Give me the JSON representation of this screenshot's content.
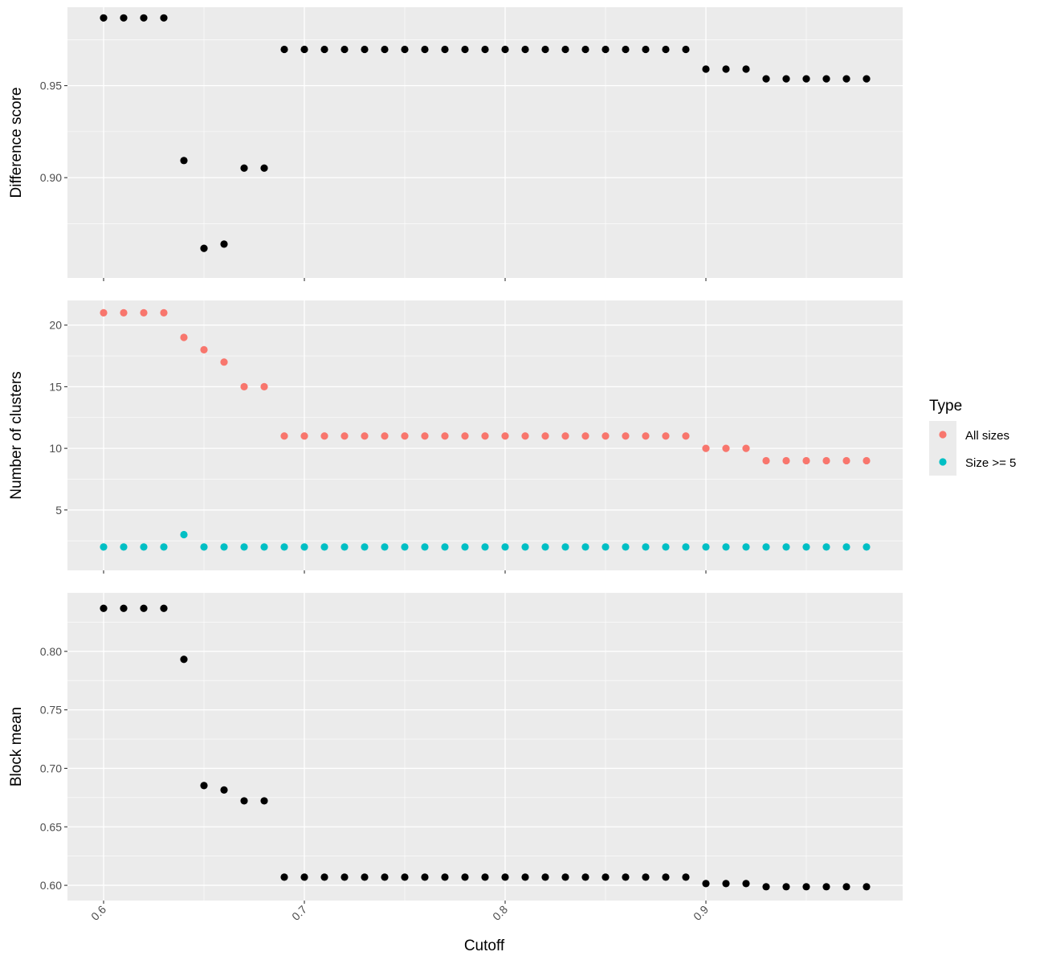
{
  "chart_data": {
    "type": "scatter",
    "xlabel": "Cutoff",
    "x_ticks": [
      0.6,
      0.7,
      0.8,
      0.9
    ],
    "x_tick_labels": [
      "0.6",
      "0.7",
      "0.8",
      "0.9"
    ],
    "xlim": [
      0.582,
      0.998
    ],
    "x": [
      0.6,
      0.61,
      0.62,
      0.63,
      0.64,
      0.65,
      0.66,
      0.67,
      0.68,
      0.69,
      0.7,
      0.71,
      0.72,
      0.73,
      0.74,
      0.75,
      0.76,
      0.77,
      0.78,
      0.79,
      0.8,
      0.81,
      0.82,
      0.83,
      0.84,
      0.85,
      0.86,
      0.87,
      0.88,
      0.89,
      0.9,
      0.91,
      0.92,
      0.93,
      0.94,
      0.95,
      0.96,
      0.97,
      0.98
    ],
    "panels": [
      {
        "ylabel": "Difference score",
        "ylim": [
          0.8455,
          0.9926
        ],
        "y_ticks": [
          0.9,
          0.95
        ],
        "y_tick_labels": [
          "0.90",
          "0.95"
        ],
        "series": [
          {
            "color": "#000000",
            "values": [
              0.9868,
              0.9868,
              0.9868,
              0.9868,
              0.9093,
              0.8616,
              0.8639,
              0.9052,
              0.9052,
              0.9697,
              0.9697,
              0.9697,
              0.9697,
              0.9697,
              0.9697,
              0.9697,
              0.9697,
              0.9697,
              0.9697,
              0.9697,
              0.9697,
              0.9697,
              0.9697,
              0.9697,
              0.9697,
              0.9697,
              0.9697,
              0.9697,
              0.9697,
              0.9697,
              0.959,
              0.959,
              0.959,
              0.9537,
              0.9537,
              0.9537,
              0.9537,
              0.9537,
              0.9537
            ]
          }
        ]
      },
      {
        "ylabel": "Number of clusters",
        "ylim": [
          0.1,
          22.0
        ],
        "y_ticks": [
          5,
          10,
          15,
          20
        ],
        "y_tick_labels": [
          "5",
          "10",
          "15",
          "20"
        ],
        "series": [
          {
            "name": "All sizes",
            "color": "#F8766D",
            "values": [
              21,
              21,
              21,
              21,
              19,
              18,
              17,
              15,
              15,
              11,
              11,
              11,
              11,
              11,
              11,
              11,
              11,
              11,
              11,
              11,
              11,
              11,
              11,
              11,
              11,
              11,
              11,
              11,
              11,
              11,
              10,
              10,
              10,
              9,
              9,
              9,
              9,
              9,
              9
            ]
          },
          {
            "name": "Size >= 5",
            "color": "#00BFC4",
            "values": [
              2,
              2,
              2,
              2,
              3,
              2,
              2,
              2,
              2,
              2,
              2,
              2,
              2,
              2,
              2,
              2,
              2,
              2,
              2,
              2,
              2,
              2,
              2,
              2,
              2,
              2,
              2,
              2,
              2,
              2,
              2,
              2,
              2,
              2,
              2,
              2,
              2,
              2,
              2
            ]
          }
        ]
      },
      {
        "ylabel": "Block mean",
        "ylim": [
          0.587,
          0.85
        ],
        "y_ticks": [
          0.6,
          0.65,
          0.7,
          0.75,
          0.8
        ],
        "y_tick_labels": [
          "0.60",
          "0.65",
          "0.70",
          "0.75",
          "0.80"
        ],
        "series": [
          {
            "color": "#000000",
            "values": [
              0.8368,
              0.8368,
              0.8368,
              0.8368,
              0.7932,
              0.6853,
              0.6815,
              0.6722,
              0.6722,
              0.607,
              0.607,
              0.607,
              0.607,
              0.607,
              0.607,
              0.607,
              0.607,
              0.607,
              0.607,
              0.607,
              0.607,
              0.607,
              0.607,
              0.607,
              0.607,
              0.607,
              0.607,
              0.607,
              0.607,
              0.607,
              0.6015,
              0.6015,
              0.6015,
              0.5988,
              0.5988,
              0.5988,
              0.5988,
              0.5988,
              0.5988
            ]
          }
        ]
      }
    ],
    "legend": {
      "title": "Type",
      "placement": "right",
      "entries": [
        {
          "label": "All sizes",
          "color": "#F8766D"
        },
        {
          "label": "Size >= 5",
          "color": "#00BFC4"
        }
      ]
    },
    "grid": true
  }
}
